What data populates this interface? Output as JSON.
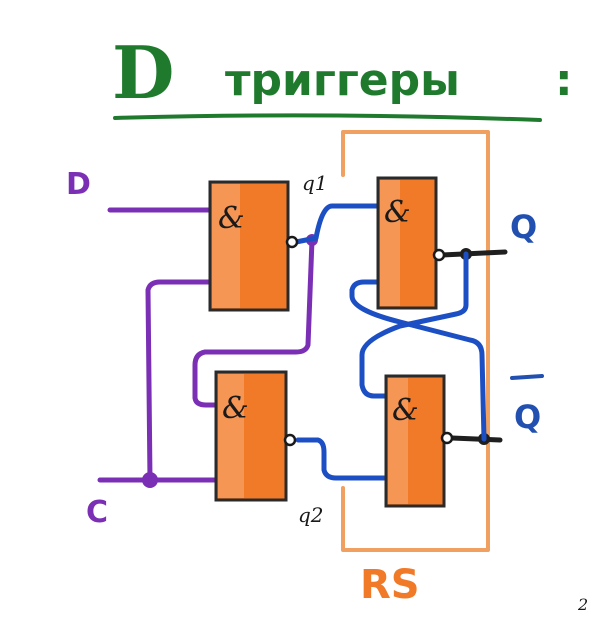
{
  "title": {
    "letter": "D",
    "text": "триггеры",
    "colon": ":"
  },
  "inputs": {
    "d_label": "D",
    "c_label": "C"
  },
  "outputs": {
    "q_label": "Q",
    "q_bar_label": "Q"
  },
  "internal": {
    "q1_label": "q1",
    "q2_label": "q2"
  },
  "gates": [
    {
      "symbol": "&"
    },
    {
      "symbol": "&"
    },
    {
      "symbol": "&"
    },
    {
      "symbol": "&"
    }
  ],
  "rs_label": "RS",
  "corner_mark": "2",
  "colors": {
    "title_green": "#1f7a2e",
    "gate_orange": "#f07a28",
    "gate_border": "#2a2a2a",
    "wire_purple": "#7b2fb5",
    "wire_blue": "#1d4fc4",
    "rs_frame": "#f0a060",
    "label_blue": "#2250b0"
  }
}
